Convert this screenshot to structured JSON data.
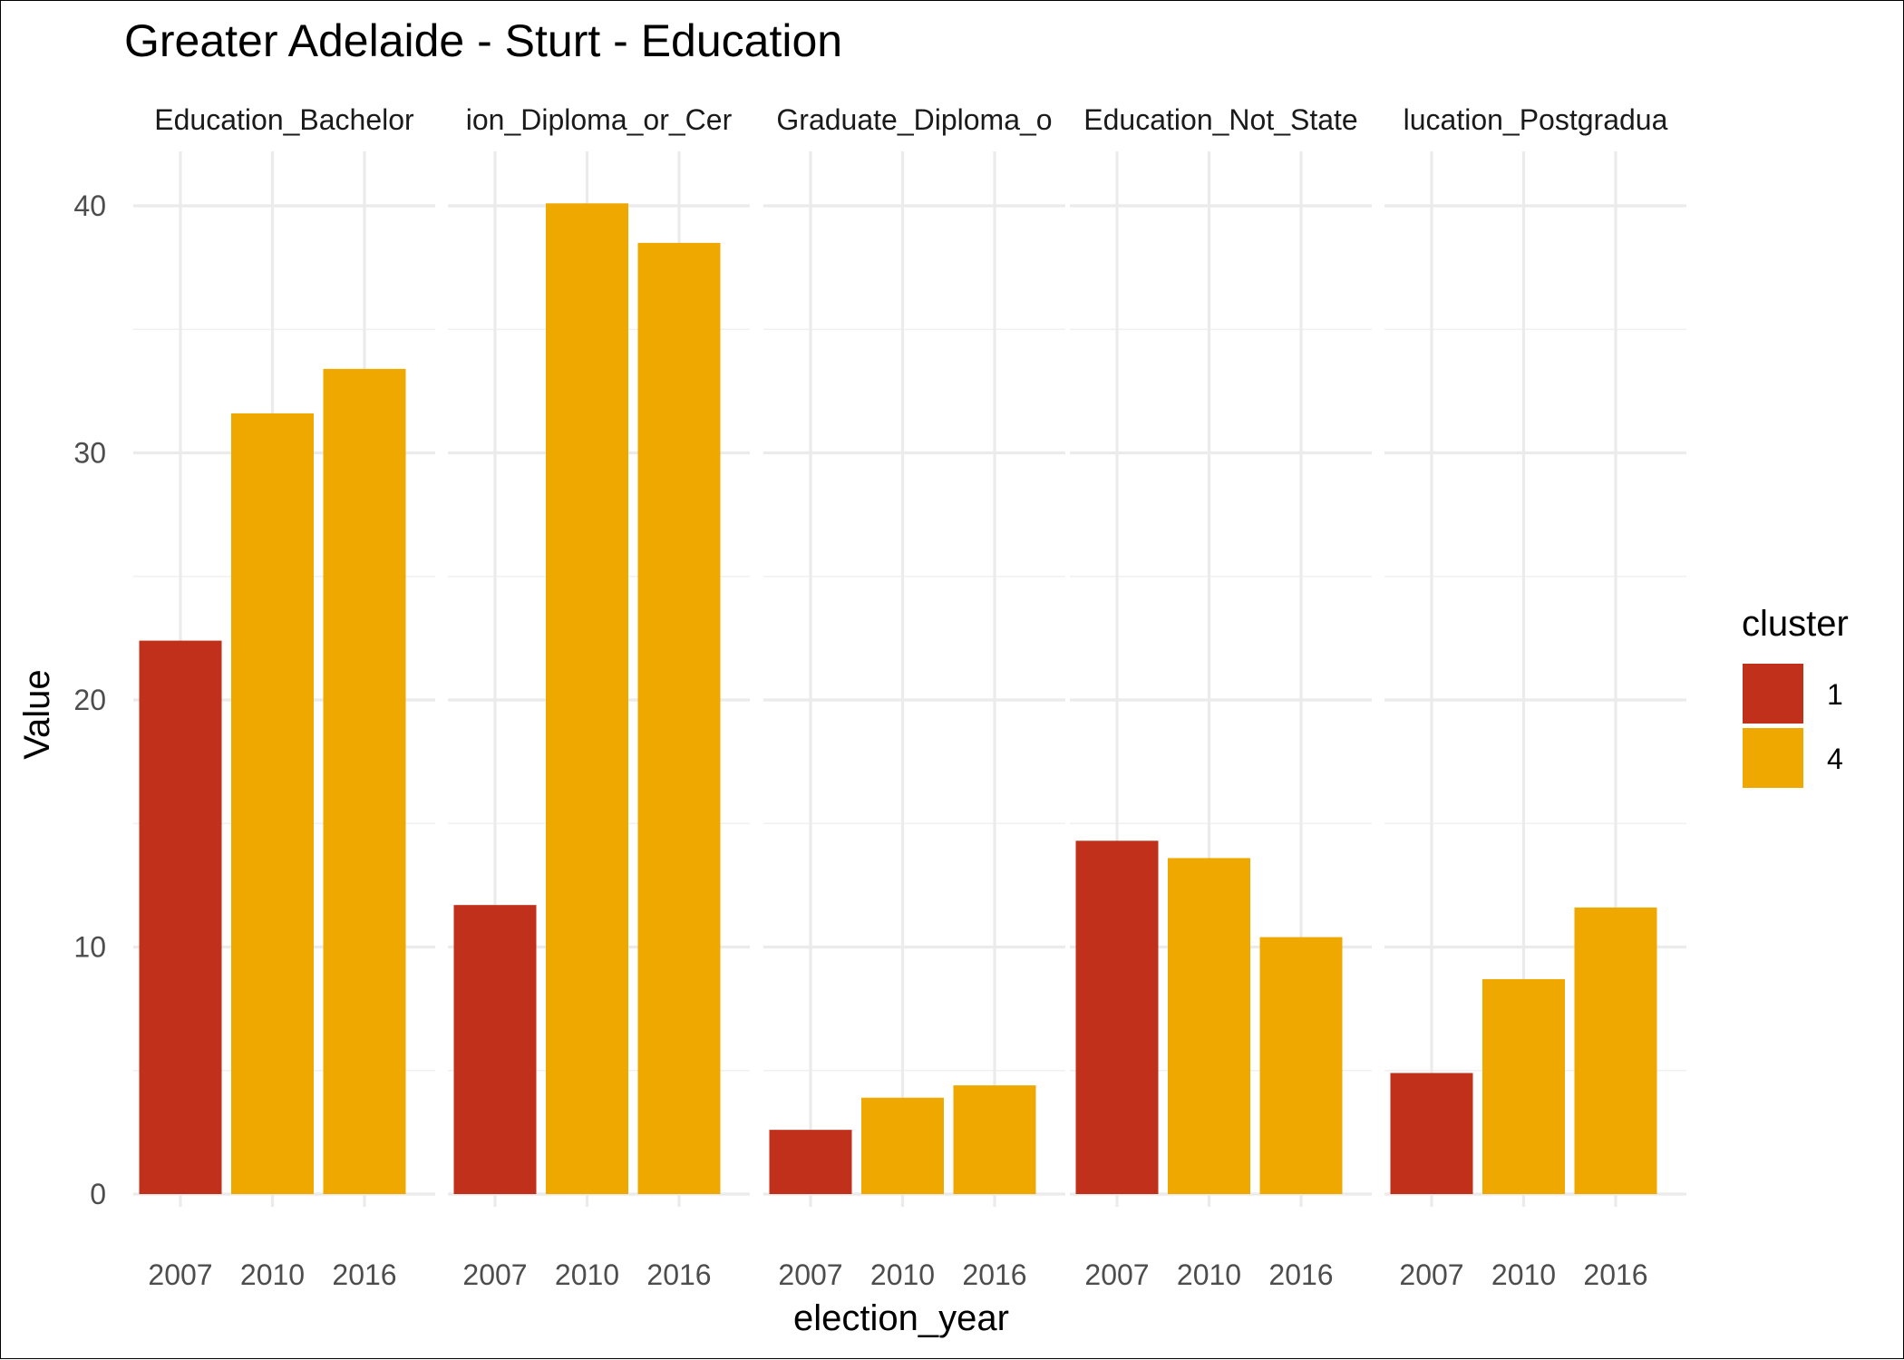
{
  "chart_data": {
    "type": "bar",
    "title": "Greater Adelaide - Sturt - Education",
    "xlabel": "election_year",
    "ylabel": "Value",
    "ylim": [
      0,
      42
    ],
    "yticks": [
      0,
      10,
      20,
      30,
      40
    ],
    "grid": true,
    "legend": {
      "title": "cluster",
      "placement": "right",
      "entries": [
        {
          "label": "1",
          "color": "#C1301A"
        },
        {
          "label": "4",
          "color": "#EFA800"
        }
      ]
    },
    "facets": [
      {
        "strip_label": "Education_Bachelor",
        "categories": [
          "2007",
          "2010",
          "2016"
        ],
        "values": [
          22.4,
          31.6,
          33.4
        ],
        "clusters": [
          "1",
          "4",
          "4"
        ]
      },
      {
        "strip_label": "ion_Diploma_or_Cer",
        "categories": [
          "2007",
          "2010",
          "2016"
        ],
        "values": [
          11.7,
          40.1,
          38.5
        ],
        "clusters": [
          "1",
          "4",
          "4"
        ]
      },
      {
        "strip_label": "Graduate_Diploma_o",
        "categories": [
          "2007",
          "2010",
          "2016"
        ],
        "values": [
          2.6,
          3.9,
          4.4
        ],
        "clusters": [
          "1",
          "4",
          "4"
        ]
      },
      {
        "strip_label": "Education_Not_State",
        "categories": [
          "2007",
          "2010",
          "2016"
        ],
        "values": [
          14.3,
          13.6,
          10.4
        ],
        "clusters": [
          "1",
          "4",
          "4"
        ]
      },
      {
        "strip_label": "lucation_Postgradua",
        "categories": [
          "2007",
          "2010",
          "2016"
        ],
        "values": [
          4.9,
          8.7,
          11.6
        ],
        "clusters": [
          "1",
          "4",
          "4"
        ]
      }
    ]
  }
}
